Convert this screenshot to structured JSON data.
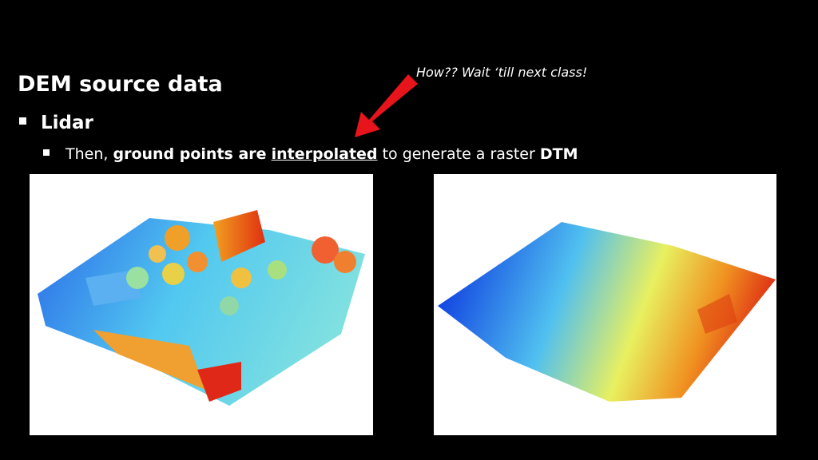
{
  "slide": {
    "title": "DEM source data",
    "annotation": "How?? Wait ‘till next class!",
    "bullets": [
      {
        "text": "Lidar",
        "children": [
          {
            "segments": [
              "Then,",
              "ground points are",
              "interpolated",
              "to generate a raster",
              "DTM"
            ]
          }
        ]
      }
    ]
  }
}
